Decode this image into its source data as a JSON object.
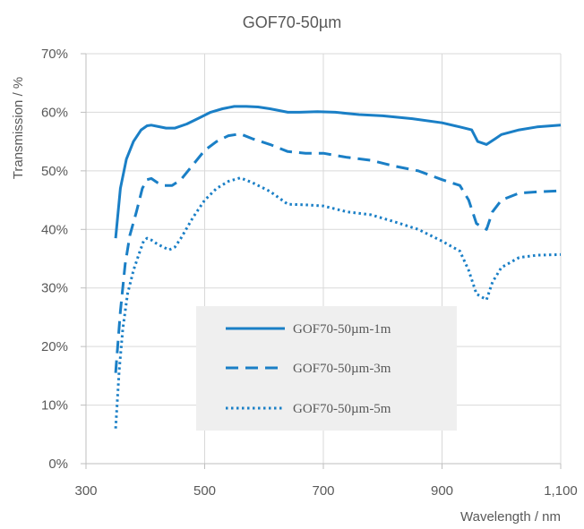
{
  "chart_data": {
    "type": "line",
    "title": "GOF70-50µm",
    "xlabel": "Wavelength / nm",
    "ylabel": "Transmission / %",
    "xlim": [
      300,
      1100
    ],
    "ylim": [
      0,
      70
    ],
    "x_ticks": [
      300,
      500,
      700,
      900,
      1100
    ],
    "x_tick_labels": [
      "300",
      "500",
      "700",
      "900",
      "1,100"
    ],
    "y_ticks": [
      0,
      10,
      20,
      30,
      40,
      50,
      60,
      70
    ],
    "y_tick_labels": [
      "0%",
      "10%",
      "20%",
      "30%",
      "40%",
      "50%",
      "60%",
      "70%"
    ],
    "grid": true,
    "legend_position": "center-bottom",
    "line_color": "#1a7fc6",
    "series": [
      {
        "name": "GOF70-50µm-1m",
        "dash": "solid",
        "x": [
          350,
          358,
          368,
          380,
          393,
          403,
          410,
          420,
          435,
          450,
          470,
          490,
          510,
          530,
          550,
          570,
          590,
          610,
          640,
          660,
          690,
          720,
          740,
          760,
          800,
          850,
          900,
          930,
          950,
          960,
          975,
          990,
          1000,
          1030,
          1060,
          1100
        ],
        "y": [
          38.5,
          47,
          52,
          55,
          57,
          57.7,
          57.8,
          57.6,
          57.3,
          57.3,
          58,
          59,
          60,
          60.6,
          61,
          61,
          60.9,
          60.6,
          60,
          60,
          60.1,
          60,
          59.8,
          59.6,
          59.4,
          58.9,
          58.2,
          57.5,
          57,
          55,
          54.5,
          55.5,
          56.2,
          57,
          57.5,
          57.8
        ]
      },
      {
        "name": "GOF70-50µm-3m",
        "dash": "dash",
        "x": [
          350,
          358,
          366,
          374,
          385,
          395,
          403,
          410,
          420,
          432,
          445,
          460,
          480,
          500,
          520,
          540,
          560,
          580,
          610,
          640,
          670,
          700,
          740,
          780,
          820,
          860,
          900,
          930,
          945,
          958,
          966,
          975,
          985,
          1000,
          1030,
          1060,
          1100
        ],
        "y": [
          15.5,
          26,
          34,
          39,
          43,
          47,
          48.5,
          48.7,
          48,
          47.5,
          47.5,
          48.5,
          51,
          53.5,
          55,
          56,
          56.3,
          55.5,
          54.5,
          53.3,
          53,
          53,
          52.3,
          51.8,
          50.8,
          50,
          48.5,
          47.5,
          45,
          41,
          40.5,
          40,
          43,
          45,
          46.2,
          46.4,
          46.6
        ]
      },
      {
        "name": "GOF70-50µm-5m",
        "dash": "dot",
        "x": [
          350,
          356,
          362,
          370,
          380,
          390,
          397,
          403,
          410,
          420,
          430,
          440,
          450,
          460,
          480,
          500,
          520,
          540,
          560,
          580,
          610,
          640,
          670,
          700,
          740,
          780,
          820,
          860,
          900,
          930,
          945,
          958,
          966,
          975,
          985,
          1000,
          1030,
          1060,
          1100
        ],
        "y": [
          6,
          16,
          23,
          29,
          33,
          36,
          38,
          38.5,
          38.2,
          37.5,
          37,
          36.5,
          37,
          38.5,
          42,
          45,
          47,
          48.2,
          48.8,
          48,
          46.5,
          44.3,
          44.2,
          44,
          43,
          42.5,
          41.3,
          40,
          38,
          36.3,
          33,
          29,
          28.5,
          28,
          31,
          33.5,
          35.2,
          35.6,
          35.7
        ]
      }
    ]
  }
}
